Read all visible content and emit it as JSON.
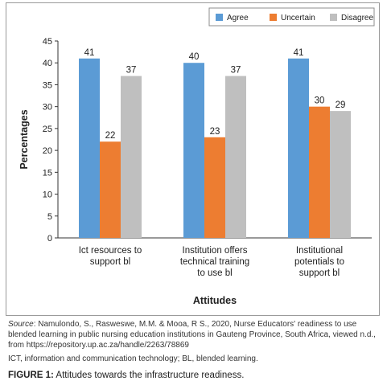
{
  "chart_data": {
    "type": "bar",
    "categories": [
      [
        "Ict resources to",
        "support bl"
      ],
      [
        "Institution offers",
        "technical training",
        "to use bl"
      ],
      [
        "Institutional",
        "potentials to",
        "support bl"
      ]
    ],
    "series": [
      {
        "name": "Agree",
        "values": [
          41,
          40,
          41
        ],
        "color": "#5b9bd5"
      },
      {
        "name": "Uncertain",
        "values": [
          22,
          23,
          30
        ],
        "color": "#ed7d31"
      },
      {
        "name": "Disagree",
        "values": [
          37,
          37,
          29
        ],
        "color": "#bfbfbf"
      }
    ],
    "title": "",
    "xlabel": "Attitudes",
    "ylabel": "Percentages",
    "ylim": [
      0,
      45
    ],
    "yticks": [
      0,
      5,
      10,
      15,
      20,
      25,
      30,
      35,
      40,
      45
    ],
    "grid": false,
    "legend": "top-right"
  },
  "notes": {
    "source_label": "Source",
    "source_text": ": Namulondo, S., Rasweswe, M.M. & Mooa, R S., 2020, Nurse Educators' readiness to use blended learning in public nursing education institutions in Gauteng Province, South Africa, viewed n.d., from https://repository.up.ac.za/handle/2263/78869",
    "abbreviations": "ICT, information and communication technology; BL, blended learning."
  },
  "caption": {
    "label": "FIGURE 1:",
    "text": " Attitudes towards the infrastructure readiness."
  }
}
